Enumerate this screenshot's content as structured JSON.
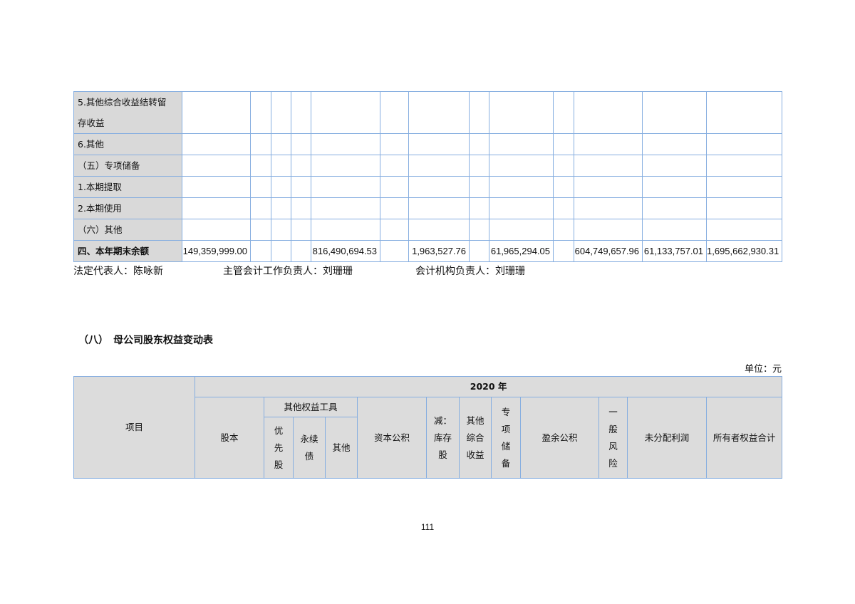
{
  "top_table": {
    "rows": [
      {
        "label": "5.其他综合收益结转留存收益",
        "values": []
      },
      {
        "label": "6.其他",
        "values": []
      },
      {
        "label": "（五）专项储备",
        "values": []
      },
      {
        "label": "1.本期提取",
        "values": []
      },
      {
        "label": "2.本期使用",
        "values": []
      },
      {
        "label": "（六）其他",
        "values": []
      },
      {
        "label": "四、本年期末余额",
        "values": [
          "149,359,999.00",
          "",
          "",
          "",
          "816,490,694.53",
          "",
          "1,963,527.76",
          "",
          "61,965,294.05",
          "",
          "604,749,657.96",
          "61,133,757.01",
          "1,695,662,930.31"
        ]
      }
    ]
  },
  "signatures": {
    "legal_rep": "法定代表人：陈咏新",
    "accounting_head": "主管会计工作负责人：刘珊珊",
    "accounting_org_head": "会计机构负责人：刘珊珊"
  },
  "section_title": "（八）　母公司股东权益变动表",
  "unit": "单位：元",
  "bottom_table": {
    "item": "项目",
    "year": "2020 年",
    "share_capital": "股本",
    "other_equity_tools": "其他权益工具",
    "preferred": "优先股",
    "perpetual": "永续债",
    "other": "其他",
    "capital_reserve": "资本公积",
    "treasury": "减：库存股",
    "oci": "其他综合收益",
    "special_reserve": "专项储备",
    "surplus_reserve": "盈余公积",
    "general_risk": "一般风险",
    "undistributed": "未分配利润",
    "total_equity": "所有者权益合计"
  },
  "page_number": "111"
}
